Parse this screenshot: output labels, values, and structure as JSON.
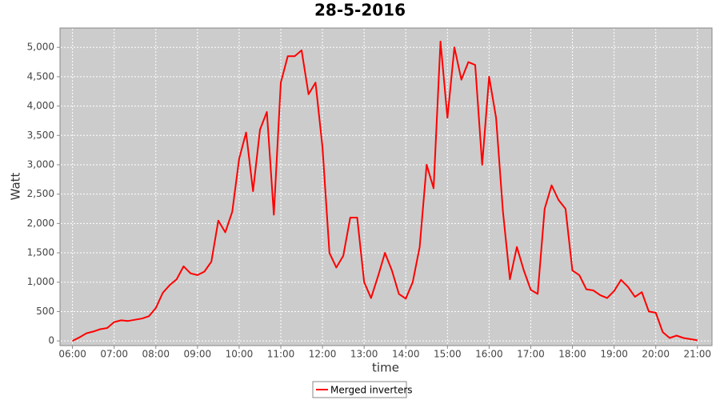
{
  "chart_data": {
    "type": "line",
    "title": "28-5-2016",
    "x_label": "time",
    "y_label": "Watt",
    "x": [
      "06:00",
      "06:10",
      "06:20",
      "06:30",
      "06:40",
      "06:50",
      "07:00",
      "07:10",
      "07:20",
      "07:30",
      "07:40",
      "07:50",
      "08:00",
      "08:10",
      "08:20",
      "08:30",
      "08:40",
      "08:50",
      "09:00",
      "09:10",
      "09:20",
      "09:30",
      "09:40",
      "09:50",
      "10:00",
      "10:10",
      "10:20",
      "10:30",
      "10:40",
      "10:50",
      "11:00",
      "11:10",
      "11:20",
      "11:30",
      "11:40",
      "11:50",
      "12:00",
      "12:10",
      "12:20",
      "12:30",
      "12:40",
      "12:50",
      "13:00",
      "13:10",
      "13:20",
      "13:30",
      "13:40",
      "13:50",
      "14:00",
      "14:10",
      "14:20",
      "14:30",
      "14:40",
      "14:50",
      "15:00",
      "15:10",
      "15:20",
      "15:30",
      "15:40",
      "15:50",
      "16:00",
      "16:10",
      "16:20",
      "16:30",
      "16:40",
      "16:50",
      "17:00",
      "17:10",
      "17:20",
      "17:30",
      "17:40",
      "17:50",
      "18:00",
      "18:10",
      "18:20",
      "18:30",
      "18:40",
      "18:50",
      "19:00",
      "19:10",
      "19:20",
      "19:30",
      "19:40",
      "19:50",
      "20:00",
      "20:10",
      "20:20",
      "20:30",
      "20:40",
      "20:50",
      "21:00"
    ],
    "series": [
      {
        "name": "Merged inverters",
        "color": "#ff0000",
        "values": [
          0,
          60,
          130,
          160,
          200,
          220,
          320,
          350,
          340,
          360,
          380,
          420,
          560,
          820,
          950,
          1050,
          1270,
          1150,
          1120,
          1180,
          1350,
          2050,
          1850,
          2200,
          3100,
          3550,
          2550,
          3600,
          3900,
          2150,
          4400,
          4850,
          4850,
          4950,
          4200,
          4400,
          3300,
          1500,
          1250,
          1450,
          2100,
          2100,
          1000,
          730,
          1100,
          1500,
          1200,
          800,
          720,
          1000,
          1600,
          3000,
          2600,
          5100,
          3800,
          5000,
          4450,
          4750,
          4700,
          3000,
          4500,
          3800,
          2200,
          1050,
          1600,
          1200,
          870,
          800,
          2250,
          2650,
          2400,
          2250,
          1200,
          1120,
          880,
          860,
          780,
          730,
          850,
          1040,
          920,
          750,
          830,
          500,
          480,
          150,
          50,
          90,
          50,
          30,
          10
        ]
      }
    ],
    "xlim": [
      "05:42",
      "21:21"
    ],
    "xticks": [
      "06:00",
      "07:00",
      "08:00",
      "09:00",
      "10:00",
      "11:00",
      "12:00",
      "13:00",
      "14:00",
      "15:00",
      "16:00",
      "17:00",
      "18:00",
      "19:00",
      "20:00",
      "21:00"
    ],
    "ylim": [
      -80,
      5330
    ],
    "yticks": [
      0,
      500,
      {
        "value": 1000,
        "label": "1,000"
      },
      {
        "value": 1500,
        "label": "1,500"
      },
      {
        "value": 2000,
        "label": "2,000"
      },
      {
        "value": 2500,
        "label": "2,500"
      },
      {
        "value": 3000,
        "label": "3,000"
      },
      {
        "value": 3500,
        "label": "3,500"
      },
      {
        "value": 4000,
        "label": "4,000"
      },
      {
        "value": 4500,
        "label": "4,500"
      },
      {
        "value": 5000,
        "label": "5,000"
      }
    ],
    "grid": true
  }
}
